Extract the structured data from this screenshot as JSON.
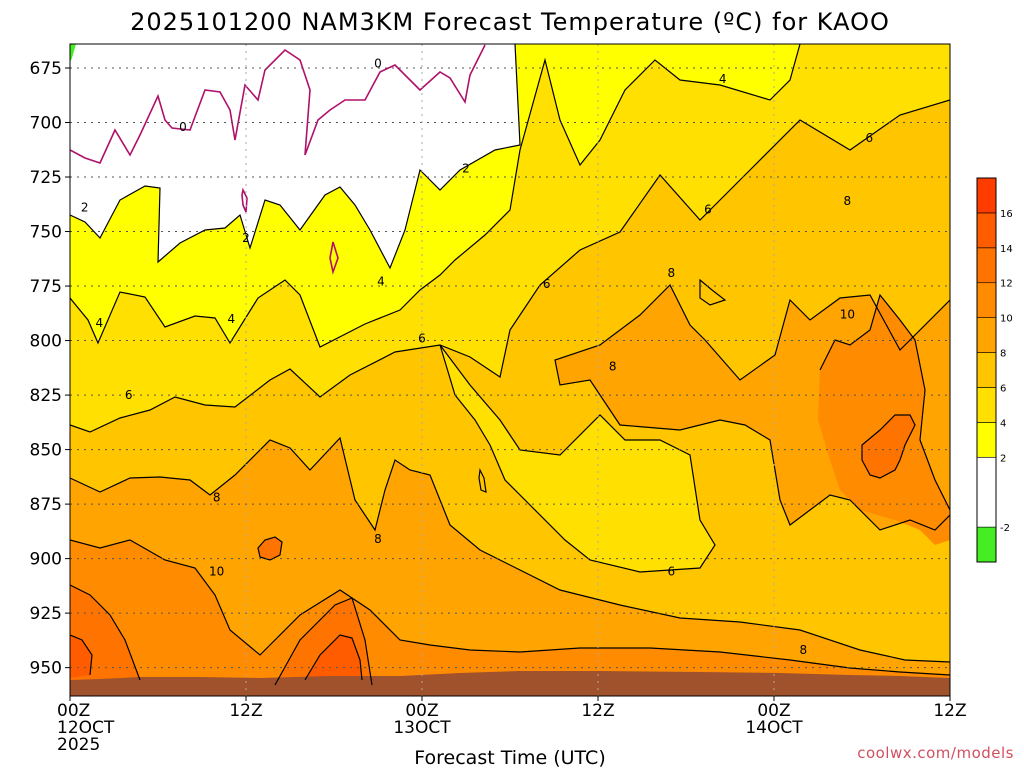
{
  "chart_data": {
    "type": "heatmap",
    "title": "2025101200 NAM3KM Forecast Temperature (ºC) for KAOO",
    "xlabel": "Forecast Time (UTC)",
    "ylabel": "",
    "x_ticks": [
      {
        "value": 0,
        "lines": [
          "00Z",
          "12OCT",
          "2025"
        ]
      },
      {
        "value": 12,
        "lines": [
          "12Z"
        ]
      },
      {
        "value": 24,
        "lines": [
          "00Z",
          "13OCT"
        ]
      },
      {
        "value": 36,
        "lines": [
          "12Z"
        ]
      },
      {
        "value": 48,
        "lines": [
          "00Z",
          "14OCT"
        ]
      },
      {
        "value": 60,
        "lines": [
          "12Z"
        ]
      }
    ],
    "xlim": [
      0,
      60
    ],
    "y_ticks": [
      "675",
      "700",
      "725",
      "750",
      "775",
      "800",
      "825",
      "850",
      "875",
      "900",
      "925",
      "950"
    ],
    "y_values": [
      675,
      700,
      725,
      750,
      775,
      800,
      825,
      850,
      875,
      900,
      925,
      950
    ],
    "ylim": [
      963,
      664
    ],
    "grid": true,
    "colorbar": {
      "ticks": [
        "-2",
        "2",
        "4",
        "6",
        "8",
        "10",
        "12",
        "14",
        "16"
      ],
      "bins": [
        {
          "from": -4,
          "to": -2,
          "color": "#44ee22"
        },
        {
          "from": -2,
          "to": 2,
          "color": "#ffffff"
        },
        {
          "from": 2,
          "to": 4,
          "color": "#ffff00"
        },
        {
          "from": 4,
          "to": 6,
          "color": "#ffe000"
        },
        {
          "from": 6,
          "to": 8,
          "color": "#ffc600"
        },
        {
          "from": 8,
          "to": 10,
          "color": "#ffa400"
        },
        {
          "from": 10,
          "to": 12,
          "color": "#ff8c00"
        },
        {
          "from": 12,
          "to": 14,
          "color": "#ff7400"
        },
        {
          "from": 14,
          "to": 16,
          "color": "#ff5c00"
        },
        {
          "from": 16,
          "to": 18,
          "color": "#ff3c00"
        }
      ]
    },
    "contour_labels": [
      {
        "text": "0",
        "x": 7.7,
        "p": 702
      },
      {
        "text": "0",
        "x": 21,
        "p": 673
      },
      {
        "text": "2",
        "x": 1,
        "p": 739
      },
      {
        "text": "2",
        "x": 12,
        "p": 753
      },
      {
        "text": "2",
        "x": 27,
        "p": 721
      },
      {
        "text": "4",
        "x": 2,
        "p": 792
      },
      {
        "text": "4",
        "x": 11,
        "p": 790
      },
      {
        "text": "4",
        "x": 21.2,
        "p": 773
      },
      {
        "text": "4",
        "x": 44.5,
        "p": 680
      },
      {
        "text": "6",
        "x": 4,
        "p": 825
      },
      {
        "text": "6",
        "x": 24,
        "p": 799
      },
      {
        "text": "6",
        "x": 32.5,
        "p": 774
      },
      {
        "text": "6",
        "x": 43.5,
        "p": 740
      },
      {
        "text": "6",
        "x": 54.5,
        "p": 707
      },
      {
        "text": "6",
        "x": 41,
        "p": 906
      },
      {
        "text": "8",
        "x": 10,
        "p": 872
      },
      {
        "text": "8",
        "x": 21,
        "p": 891
      },
      {
        "text": "8",
        "x": 37,
        "p": 812
      },
      {
        "text": "8",
        "x": 41,
        "p": 769
      },
      {
        "text": "8",
        "x": 53,
        "p": 736
      },
      {
        "text": "8",
        "x": 50,
        "p": 942
      },
      {
        "text": "10",
        "x": 10,
        "p": 906
      },
      {
        "text": "10",
        "x": 53,
        "p": 788
      }
    ]
  },
  "credit": "coolwx.com/models"
}
